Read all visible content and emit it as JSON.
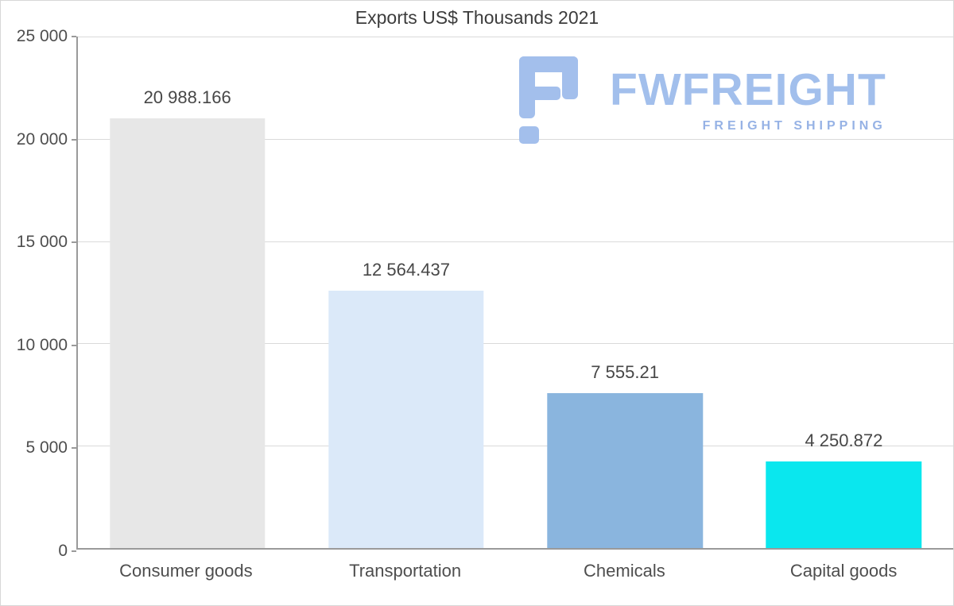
{
  "watermark": {
    "brand": "FWFREIGHT",
    "tagline": "FREIGHT SHIPPING",
    "icon_color": "#a3bfec"
  },
  "chart_data": {
    "type": "bar",
    "title": "Exports US$ Thousands 2021",
    "categories": [
      "Consumer goods",
      "Transportation",
      "Chemicals",
      "Capital goods"
    ],
    "values": [
      20988.166,
      12564.437,
      7555.21,
      4250.872
    ],
    "value_labels": [
      "20 988.166",
      "12 564.437",
      "7 555.21",
      "4 250.872"
    ],
    "bar_colors": [
      "#e7e7e7",
      "#dbe9f9",
      "#8ab5de",
      "#0ae7ee"
    ],
    "xlabel": "",
    "ylabel": "",
    "ylim": [
      0,
      25000
    ],
    "ytick_labels": [
      "0",
      "5 000",
      "10 000",
      "15 000",
      "20 000",
      "25 000"
    ],
    "grid": true,
    "legend": "none",
    "background": "#ffffff"
  }
}
